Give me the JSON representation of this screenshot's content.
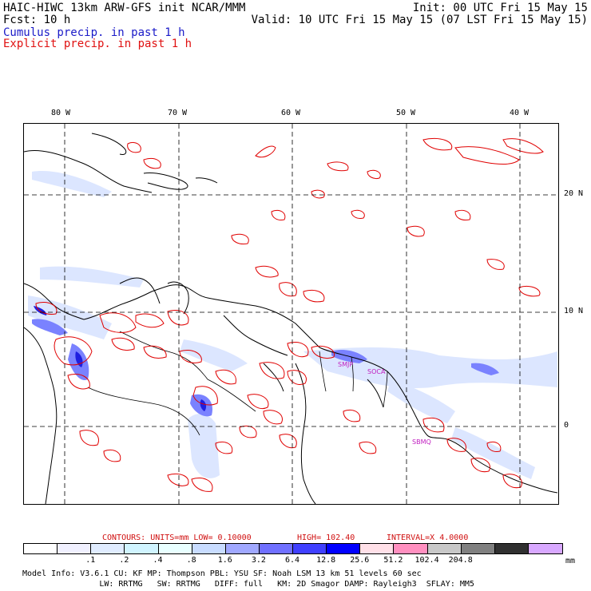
{
  "header": {
    "model_title": "HAIC-HIWC 13km ARW-GFS init   NCAR/MMM",
    "init": "Init: 00 UTC Fri 15 May 15",
    "fcst": "Fcst:    10 h",
    "valid": "Valid: 10 UTC Fri 15 May 15 (07 LST Fri 15 May 15)",
    "legend_cumulus": "Cumulus precip. in past 1 h",
    "legend_explicit": "Explicit precip. in past 1 h"
  },
  "map": {
    "lon_labels": [
      "80 W",
      "70 W",
      "60 W",
      "50 W",
      "40 W"
    ],
    "lat_labels": [
      "20 N",
      "10 N",
      "0"
    ],
    "stations": [
      "SMJP",
      "SOCA",
      "SBMQ"
    ],
    "colors": {
      "coast": "#000000",
      "explicit": "#e00000",
      "cumulus_light": "#dde8ff",
      "cumulus_mid": "#8890ff",
      "cumulus_dark": "#2020e0",
      "grid": "#000000"
    }
  },
  "contours_line": {
    "label": "CONTOURS:  UNITS=mm  LOW= 0.10000",
    "high": "HIGH=  102.40",
    "interval": "INTERVAL=X  4.0000"
  },
  "colorbar": {
    "colors": [
      "#ffffff",
      "#f0f0ff",
      "#e0ecff",
      "#d0f4ff",
      "#e8ffff",
      "#c8dcff",
      "#a0a8ff",
      "#7070ff",
      "#4040ff",
      "#0000ff",
      "#ffe0e8",
      "#ff90c0",
      "#c8c8c8",
      "#808080",
      "#303030",
      "#d8a8ff"
    ],
    "ticks": [
      ".1",
      ".2",
      ".4",
      ".8",
      "1.6",
      "3.2",
      "6.4",
      "12.8",
      "25.6",
      "51.2",
      "102.4",
      "204.8"
    ],
    "unit": "mm"
  },
  "model_info": {
    "line1": "Model Info: V3.6.1    CU: KF      MP: Thompson    PBL: YSU      SF: Noah LSM    13 km   51 levels   60 sec",
    "line2": "                LW: RRTMG   SW: RRTMG   DIFF: full   KM: 2D Smagor DAMP: Rayleigh3  SFLAY: MM5"
  }
}
